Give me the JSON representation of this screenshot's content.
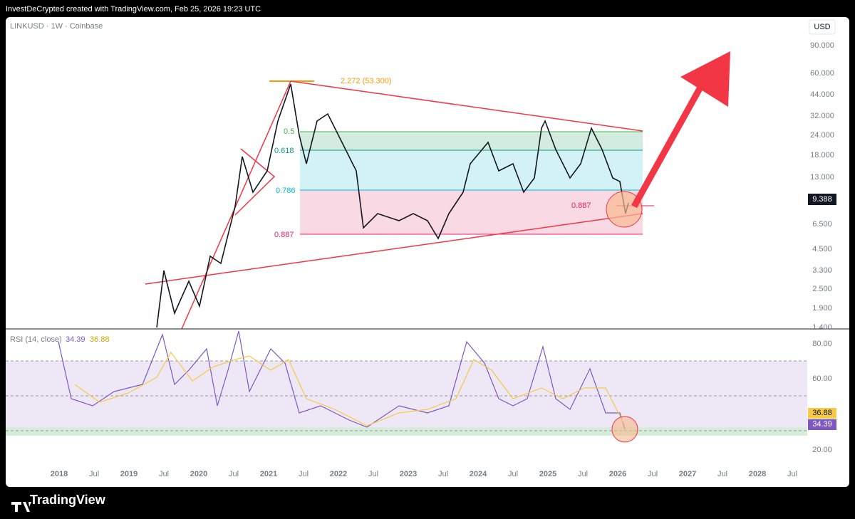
{
  "header": {
    "credit": "InvestDeCrypted created with TradingView.com, Feb 25, 2026 19:23 UTC"
  },
  "chart": {
    "symbol": "LINKUSD · 1W · Coinbase",
    "currency": "USD",
    "price_axis": [
      "90.000",
      "60.000",
      "44.000",
      "32.000",
      "24.000",
      "18.000",
      "13.000",
      "6.500",
      "4.500",
      "3.300",
      "2.500",
      "1.900",
      "1.400"
    ],
    "current_price": "9.388",
    "fib_labels": [
      "0.5",
      "0.618",
      "0.786",
      "0.887",
      "0.887"
    ],
    "extension_label": "2.272 (53.300)"
  },
  "rsi": {
    "label": "RSI (14, close)",
    "value": "34.39",
    "ma": "36.88",
    "axis": [
      "80.00",
      "60.00",
      "20.00"
    ]
  },
  "time_axis": [
    "2018",
    "Jul",
    "2019",
    "Jul",
    "2020",
    "Jul",
    "2021",
    "Jul",
    "2022",
    "Jul",
    "2023",
    "Jul",
    "2024",
    "Jul",
    "2025",
    "Jul",
    "2026",
    "Jul",
    "2027",
    "Jul",
    "2028",
    "Jul"
  ],
  "footer": {
    "logo": "TradingView"
  }
}
